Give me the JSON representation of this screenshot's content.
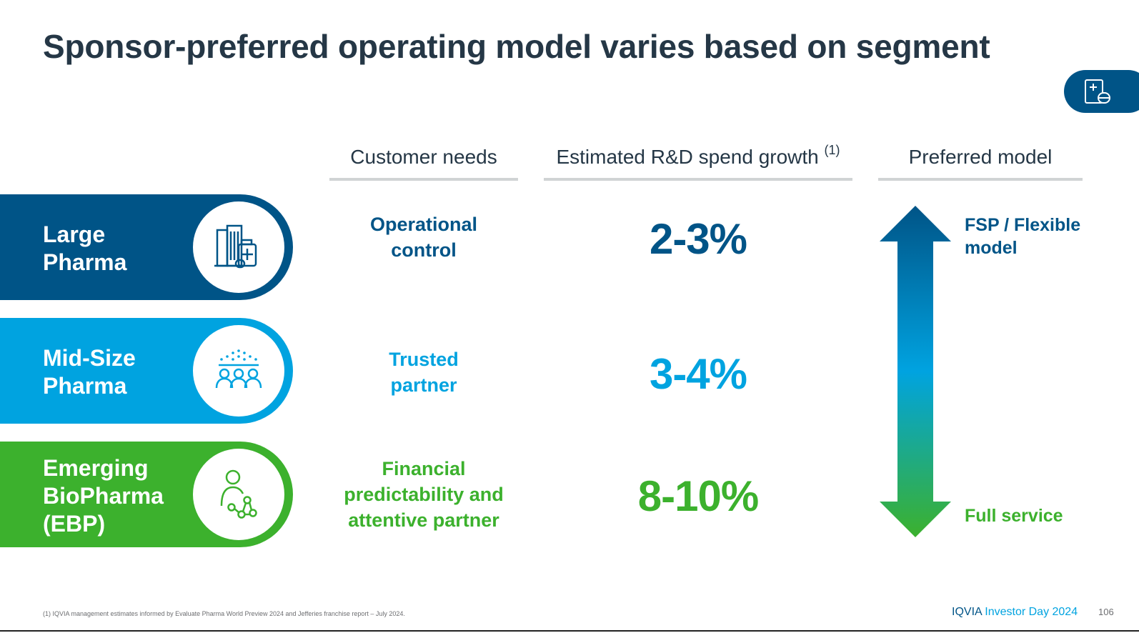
{
  "title": "Sponsor-preferred operating model varies based on segment",
  "headers": {
    "needs": "Customer needs",
    "growth": "Estimated R&D spend growth",
    "growth_note": "(1)",
    "model": "Preferred model"
  },
  "segments": [
    {
      "label_lines": [
        "Large",
        "Pharma"
      ],
      "icon": "building-medicine-icon",
      "need_lines": [
        "Operational",
        "control"
      ],
      "growth": "2-3%",
      "color": "#005487"
    },
    {
      "label_lines": [
        "Mid-Size",
        "Pharma"
      ],
      "icon": "group-network-icon",
      "need_lines": [
        "Trusted",
        "partner"
      ],
      "growth": "3-4%",
      "color": "#00a3e0"
    },
    {
      "label_lines": [
        "Emerging",
        "BioPharma",
        "(EBP)"
      ],
      "icon": "person-molecule-icon",
      "need_lines": [
        "Financial",
        "predictability and",
        "attentive partner"
      ],
      "growth": "8-10%",
      "color": "#3cb12d"
    }
  ],
  "model": {
    "top_lines": [
      "FSP / Flexible",
      "model"
    ],
    "bottom": "Full service",
    "arrow_icon": "double-arrow-icon"
  },
  "footnote": "(1) IQVIA management estimates informed by Evaluate Pharma World Preview 2024 and Jefferies franchise report – July 2024.",
  "footer": {
    "brand": "IQVIA",
    "event": "Investor Day 2024",
    "page": "106"
  },
  "colors": {
    "navy": "#005487",
    "sky": "#00a3e0",
    "green": "#3cb12d",
    "title": "#253746"
  }
}
